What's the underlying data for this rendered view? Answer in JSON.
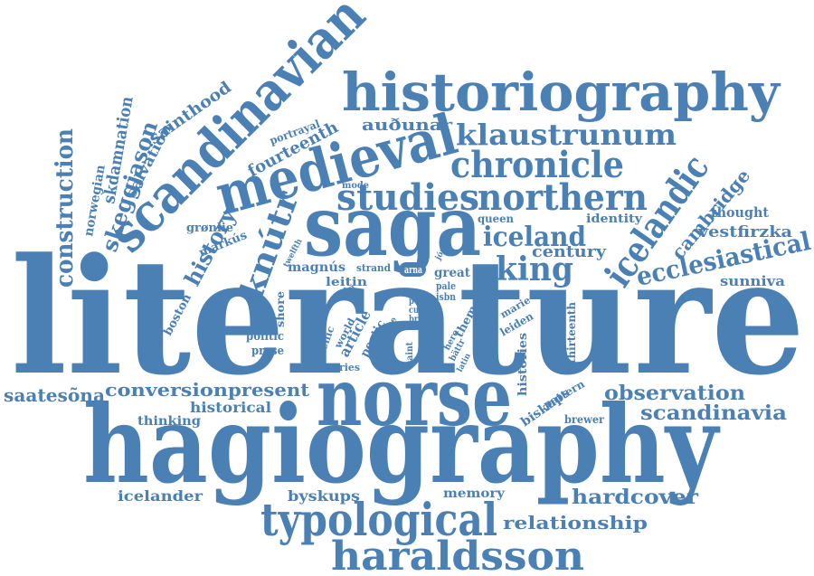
{
  "word_cloud": {
    "color": "#4a80b4",
    "background": "#ffffff",
    "words": [
      "literature",
      "hagiography",
      "saga",
      "norse",
      "medieval",
      "scandinavian",
      "historiography",
      "typological",
      "haraldsson",
      "studies",
      "chronicle",
      "northern",
      "icelandic",
      "klaustrunum",
      "knútr",
      "iceland",
      "king",
      "ecclesiastical",
      "construction",
      "skeggjason",
      "history",
      "cambridge",
      "observation",
      "scandinavia",
      "hardcover",
      "relationship",
      "saatesõna",
      "conversion",
      "present",
      "fourteenth",
      "century",
      "auðunar",
      "sainthood",
      "skdamnation",
      "salvation",
      "norwegian",
      "grønlie",
      "markús",
      "boston",
      "magnús",
      "leitin",
      "strand",
      "arna",
      "great",
      "pale",
      "isbn",
      "post",
      "cult",
      "brill",
      "shore",
      "scenic",
      "world",
      "article",
      "poetic",
      "case",
      "past",
      "siân",
      "politic",
      "prose",
      "series",
      "historical",
      "thinking",
      "icelander",
      "byskups",
      "memory",
      "saint",
      "hero",
      "bättr",
      "latin",
      "pattern",
      "theme",
      "histories",
      "biskups",
      "thirteenth",
      "marie",
      "leiden",
      "brewer",
      "identity",
      "queen",
      "thought",
      "vestfirzka",
      "sunniva",
      "mode",
      "portrayal",
      "twelfth",
      "jóns",
      "fire"
    ]
  }
}
